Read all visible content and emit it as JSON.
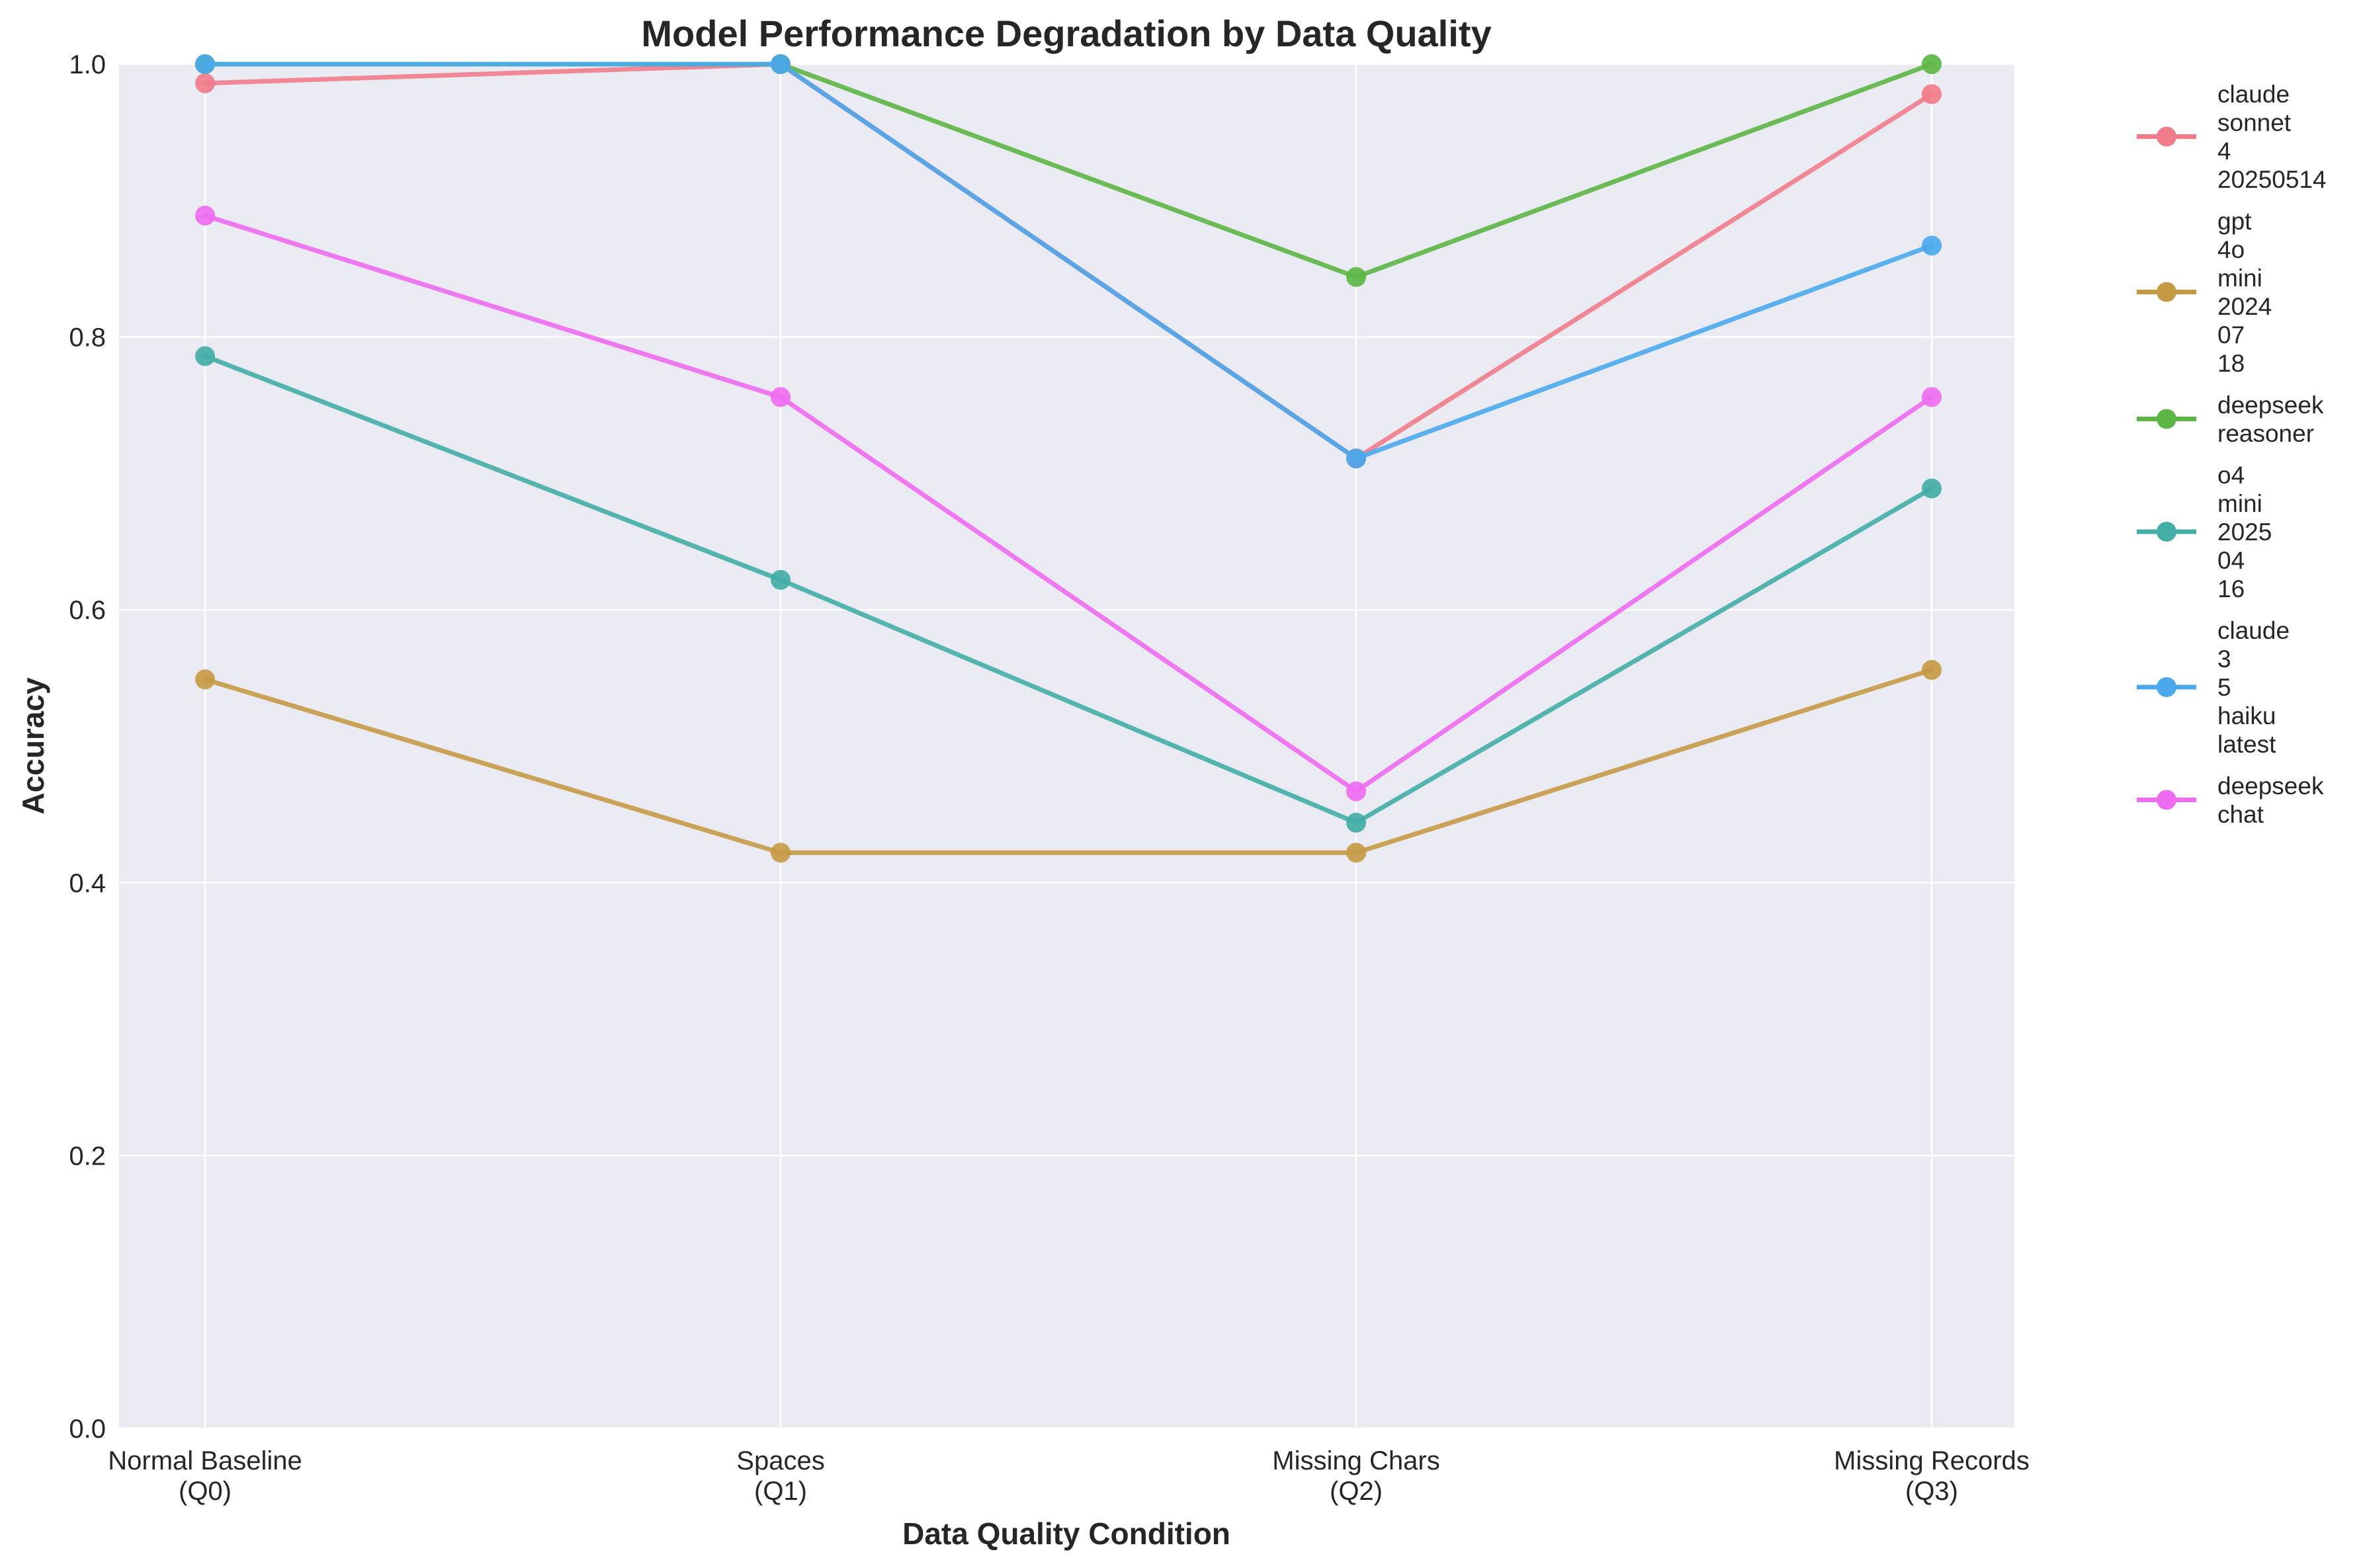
{
  "chart_data": {
    "type": "line",
    "title": "Model Performance Degradation by Data Quality",
    "xlabel": "Data Quality Condition",
    "ylabel": "Accuracy",
    "categories": [
      [
        "Normal Baseline",
        "(Q0)"
      ],
      [
        "Spaces",
        "(Q1)"
      ],
      [
        "Missing Chars",
        "(Q2)"
      ],
      [
        "Missing Records",
        "(Q3)"
      ]
    ],
    "ylim": [
      0,
      1.0
    ],
    "yticks": [
      "0.0",
      "0.2",
      "0.4",
      "0.6",
      "0.8",
      "1.0"
    ],
    "grid": true,
    "legend_position": "outside-right",
    "background": "#eaeaf2",
    "series": [
      {
        "name": [
          "claude",
          "sonnet",
          "4",
          "20250514"
        ],
        "color": "#f07c8a",
        "values": [
          0.986,
          1.0,
          0.711,
          0.978
        ]
      },
      {
        "name": [
          "gpt",
          "4o",
          "mini",
          "2024",
          "07",
          "18"
        ],
        "color": "#c49a45",
        "values": [
          0.549,
          0.422,
          0.422,
          0.556
        ]
      },
      {
        "name": [
          "deepseek",
          "reasoner"
        ],
        "color": "#5cb544",
        "values": [
          1.0,
          1.0,
          0.844,
          1.0
        ]
      },
      {
        "name": [
          "o4",
          "mini",
          "2025",
          "04",
          "16"
        ],
        "color": "#43ada6",
        "values": [
          0.786,
          0.622,
          0.444,
          0.689
        ]
      },
      {
        "name": [
          "claude",
          "3",
          "5",
          "haiku",
          "latest"
        ],
        "color": "#4aa8ec",
        "values": [
          1.0,
          1.0,
          0.711,
          0.867
        ]
      },
      {
        "name": [
          "deepseek",
          "chat"
        ],
        "color": "#ee6cf0",
        "values": [
          0.889,
          0.756,
          0.467,
          0.756
        ]
      }
    ]
  }
}
